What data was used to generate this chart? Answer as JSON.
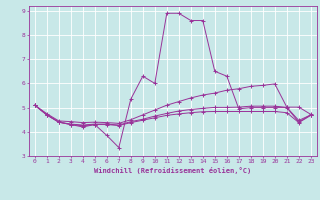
{
  "xlabel": "Windchill (Refroidissement éolien,°C)",
  "bg_color": "#c8e8e8",
  "line_color": "#993399",
  "grid_color": "#ffffff",
  "xlim": [
    -0.5,
    23.5
  ],
  "ylim": [
    3,
    9.2
  ],
  "xticks": [
    0,
    1,
    2,
    3,
    4,
    5,
    6,
    7,
    8,
    9,
    10,
    11,
    12,
    13,
    14,
    15,
    16,
    17,
    18,
    19,
    20,
    21,
    22,
    23
  ],
  "yticks": [
    3,
    4,
    5,
    6,
    7,
    8,
    9
  ],
  "tick_fontsize": 4.5,
  "xlabel_fontsize": 5.0,
  "series": [
    [
      5.1,
      4.7,
      4.4,
      4.3,
      4.2,
      4.3,
      3.85,
      3.35,
      5.35,
      6.3,
      6.0,
      8.9,
      8.9,
      8.6,
      8.6,
      6.5,
      6.3,
      4.95,
      5.0,
      5.0,
      5.0,
      5.0,
      4.4,
      4.7
    ],
    [
      5.1,
      4.75,
      4.45,
      4.42,
      4.38,
      4.4,
      4.38,
      4.35,
      4.5,
      4.7,
      4.9,
      5.1,
      5.25,
      5.4,
      5.52,
      5.6,
      5.72,
      5.78,
      5.88,
      5.92,
      5.98,
      5.02,
      5.02,
      4.72
    ],
    [
      5.1,
      4.7,
      4.4,
      4.32,
      4.28,
      4.32,
      4.32,
      4.28,
      4.42,
      4.52,
      4.65,
      4.76,
      4.86,
      4.92,
      4.97,
      5.01,
      5.01,
      5.02,
      5.06,
      5.06,
      5.06,
      5.01,
      4.47,
      4.7
    ],
    [
      5.1,
      4.7,
      4.4,
      4.3,
      4.25,
      4.3,
      4.3,
      4.26,
      4.38,
      4.48,
      4.58,
      4.68,
      4.74,
      4.79,
      4.83,
      4.84,
      4.84,
      4.84,
      4.84,
      4.84,
      4.84,
      4.79,
      4.38,
      4.68
    ]
  ]
}
